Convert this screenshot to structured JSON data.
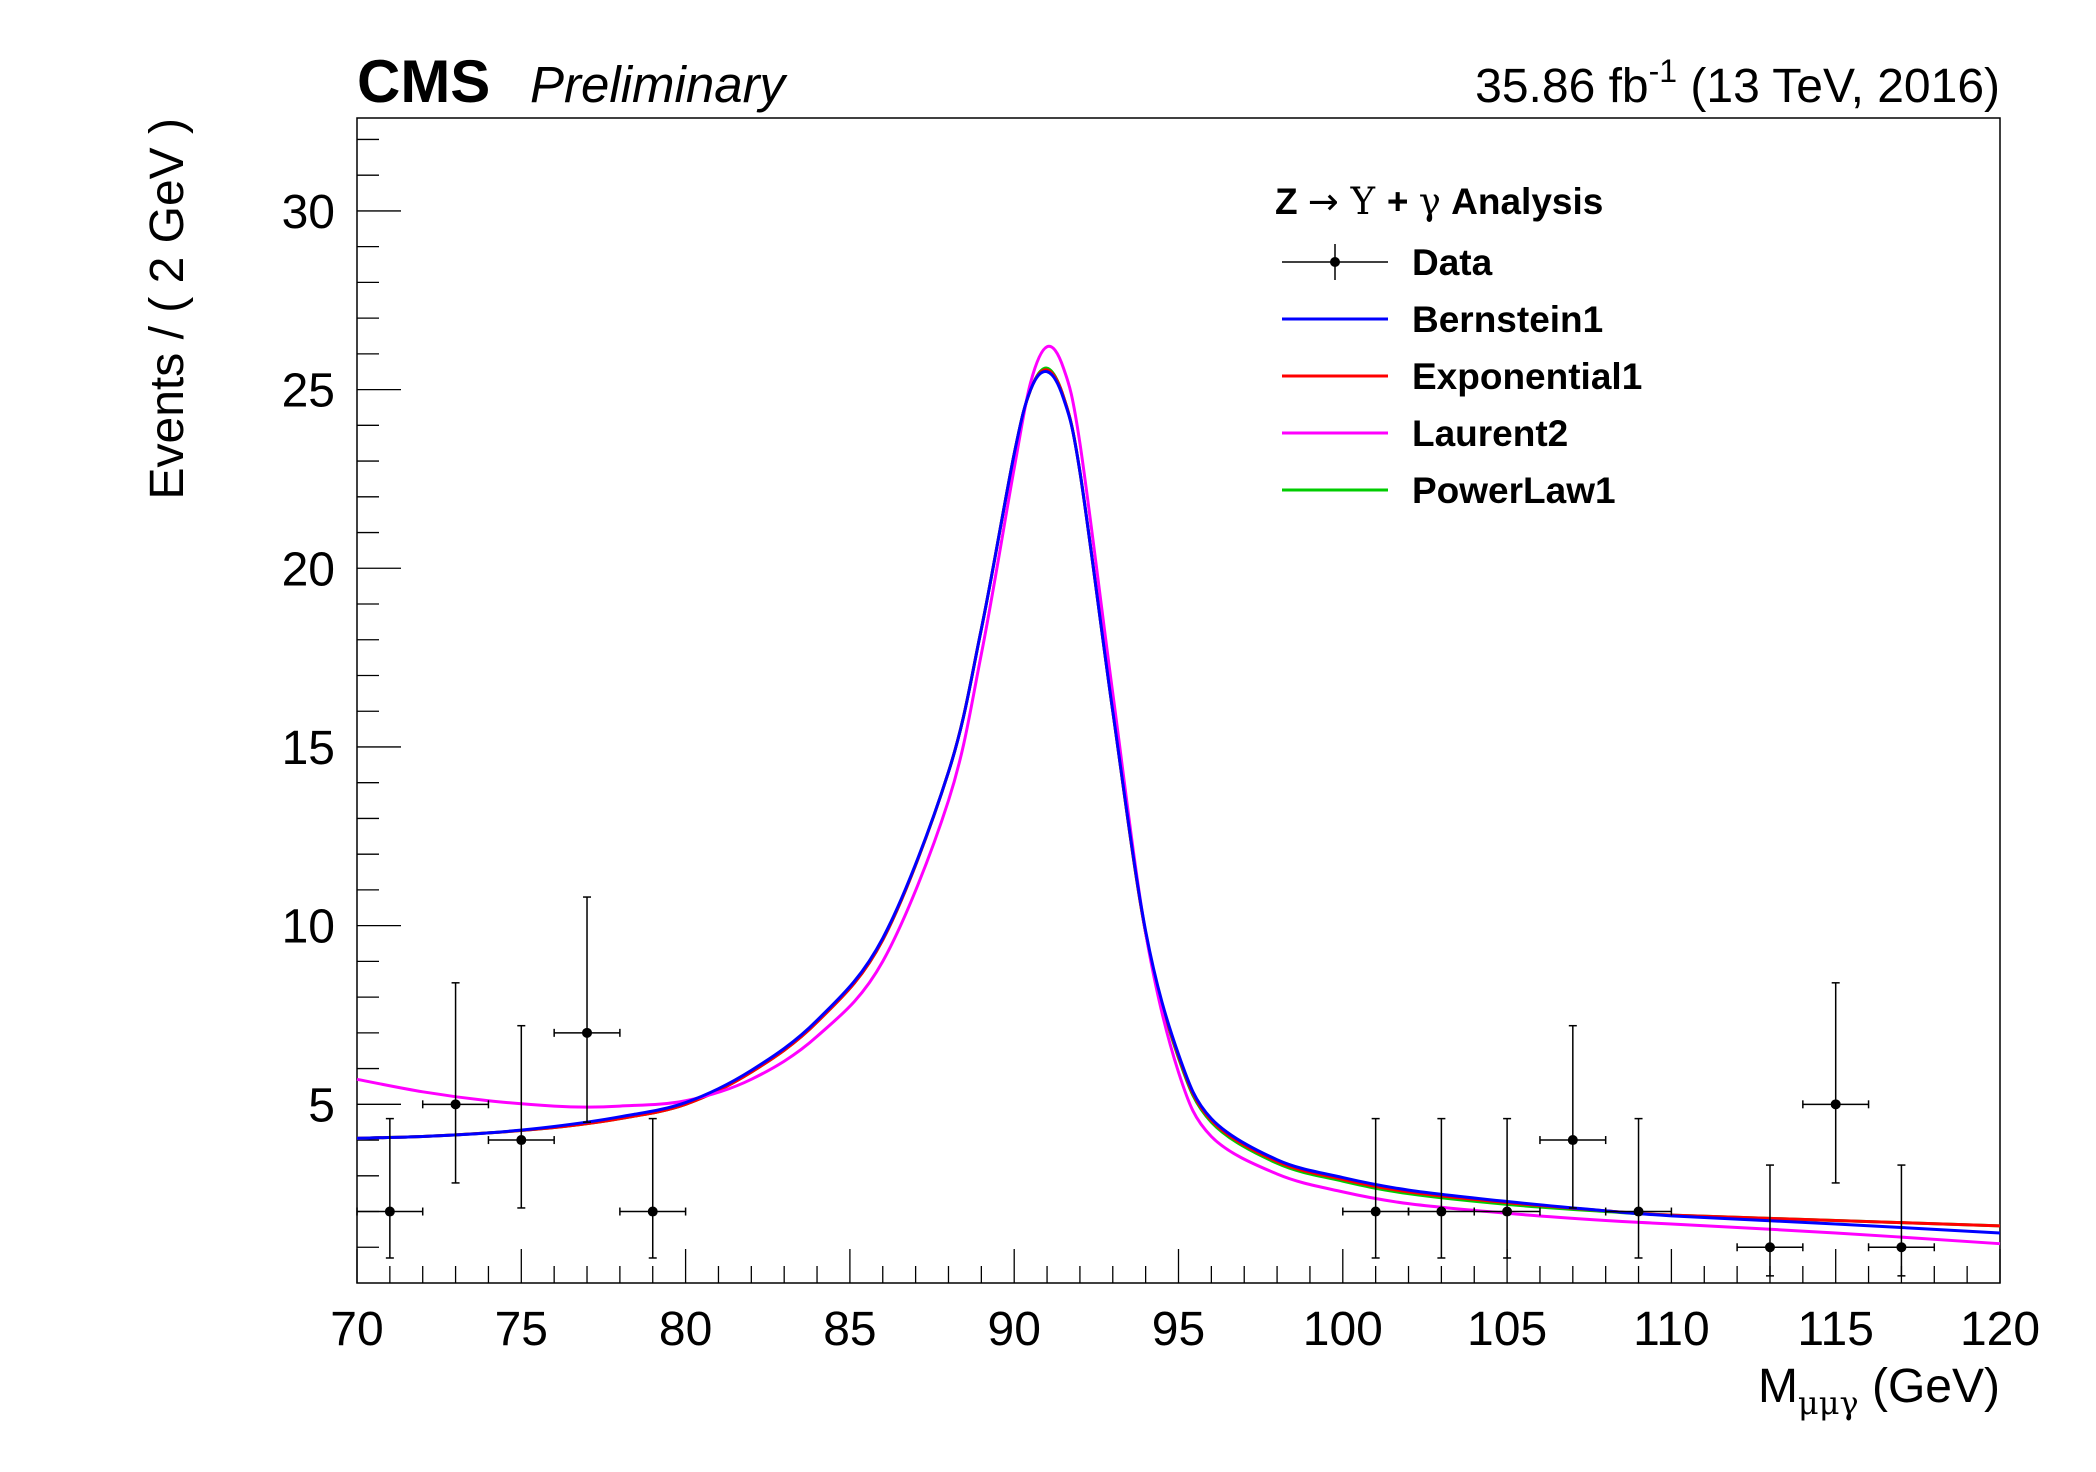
{
  "header": {
    "experiment": "CMS",
    "status": "Preliminary",
    "lumi_value": "35.86 fb",
    "lumi_exp": "-1",
    "lumi_tail": " (13 TeV, 2016)"
  },
  "legend": {
    "title_parts": {
      "a": "Z ",
      "arrow": "→",
      "b": " Υ ",
      "plus": "+ ",
      "gamma": "γ",
      "c": " Analysis"
    },
    "entries": [
      {
        "key": "data",
        "label": "Data",
        "color": "#000000",
        "kind": "marker"
      },
      {
        "key": "bernstein1",
        "label": "Bernstein1",
        "color": "#0000ff",
        "kind": "line"
      },
      {
        "key": "exponential1",
        "label": "Exponential1",
        "color": "#ff0000",
        "kind": "line"
      },
      {
        "key": "laurent2",
        "label": "Laurent2",
        "color": "#ff00ff",
        "kind": "line"
      },
      {
        "key": "powerlaw1",
        "label": "PowerLaw1",
        "color": "#00cc00",
        "kind": "line"
      }
    ]
  },
  "chart_data": {
    "type": "scatter",
    "xlabel_main": "M",
    "xlabel_sub": "μμγ",
    "xlabel_unit": " (GeV)",
    "ylabel": "Events / ( 2 GeV )",
    "xlim": [
      70,
      120
    ],
    "ylim": [
      0,
      32.6
    ],
    "x_ticks": [
      70,
      75,
      80,
      85,
      90,
      95,
      100,
      105,
      110,
      115,
      120
    ],
    "y_ticks": [
      5,
      10,
      15,
      20,
      25,
      30
    ],
    "grid": false,
    "legend_position": "top-right",
    "data_points": [
      {
        "x": 71,
        "y": 2,
        "xerr": 1,
        "ylo": 0.7,
        "yhi": 4.6
      },
      {
        "x": 73,
        "y": 5,
        "xerr": 1,
        "ylo": 2.8,
        "yhi": 8.4
      },
      {
        "x": 75,
        "y": 4,
        "xerr": 1,
        "ylo": 2.1,
        "yhi": 7.2
      },
      {
        "x": 77,
        "y": 7,
        "xerr": 1,
        "ylo": 4.5,
        "yhi": 10.8
      },
      {
        "x": 79,
        "y": 2,
        "xerr": 1,
        "ylo": 0.7,
        "yhi": 4.6
      },
      {
        "x": 101,
        "y": 2,
        "xerr": 1,
        "ylo": 0.7,
        "yhi": 4.6
      },
      {
        "x": 103,
        "y": 2,
        "xerr": 1,
        "ylo": 0.7,
        "yhi": 4.6
      },
      {
        "x": 105,
        "y": 2,
        "xerr": 1,
        "ylo": 0.7,
        "yhi": 4.6
      },
      {
        "x": 107,
        "y": 4,
        "xerr": 1,
        "ylo": 2.1,
        "yhi": 7.2
      },
      {
        "x": 109,
        "y": 2,
        "xerr": 1,
        "ylo": 0.7,
        "yhi": 4.6
      },
      {
        "x": 113,
        "y": 1,
        "xerr": 1,
        "ylo": 0.2,
        "yhi": 3.3
      },
      {
        "x": 115,
        "y": 5,
        "xerr": 1,
        "ylo": 2.8,
        "yhi": 8.4
      },
      {
        "x": 117,
        "y": 1,
        "xerr": 1,
        "ylo": 0.2,
        "yhi": 3.3
      }
    ],
    "series": [
      {
        "key": "powerlaw1",
        "color": "#00cc00",
        "x": [
          70,
          72,
          74,
          76,
          78,
          80,
          82,
          84,
          86,
          88,
          89,
          90,
          90.5,
          91,
          91.5,
          92,
          93,
          94,
          95,
          96,
          98,
          100,
          102,
          105,
          108,
          110,
          115,
          120
        ],
        "y": [
          4.05,
          4.1,
          4.2,
          4.35,
          4.6,
          5.0,
          5.9,
          7.3,
          9.6,
          14.3,
          18.3,
          23.2,
          25.0,
          25.6,
          24.8,
          22.7,
          16.0,
          9.8,
          6.3,
          4.5,
          3.35,
          2.85,
          2.5,
          2.2,
          2.0,
          1.9,
          1.75,
          1.6
        ]
      },
      {
        "key": "exponential1",
        "color": "#ff0000",
        "x": [
          70,
          72,
          74,
          76,
          78,
          80,
          82,
          84,
          86,
          88,
          89,
          90,
          90.5,
          91,
          91.5,
          92,
          93,
          94,
          95,
          96,
          98,
          100,
          102,
          105,
          108,
          110,
          115,
          120
        ],
        "y": [
          4.05,
          4.1,
          4.2,
          4.35,
          4.6,
          5.0,
          5.9,
          7.3,
          9.6,
          14.3,
          18.3,
          23.2,
          25.0,
          25.55,
          24.8,
          22.7,
          16.0,
          9.8,
          6.35,
          4.55,
          3.4,
          2.9,
          2.55,
          2.25,
          2.02,
          1.9,
          1.75,
          1.6
        ]
      },
      {
        "key": "bernstein1",
        "color": "#0000ff",
        "x": [
          70,
          72,
          74,
          76,
          78,
          80,
          82,
          84,
          86,
          88,
          89,
          90,
          90.5,
          91,
          91.5,
          92,
          93,
          94,
          95,
          96,
          98,
          100,
          102,
          105,
          108,
          110,
          115,
          120
        ],
        "y": [
          4.05,
          4.1,
          4.2,
          4.38,
          4.65,
          5.05,
          5.95,
          7.35,
          9.65,
          14.3,
          18.3,
          23.2,
          25.0,
          25.5,
          24.75,
          22.7,
          16.0,
          9.85,
          6.4,
          4.6,
          3.45,
          2.95,
          2.6,
          2.28,
          2.02,
          1.88,
          1.65,
          1.4
        ]
      },
      {
        "key": "laurent2",
        "color": "#ff00ff",
        "x": [
          70,
          72,
          74,
          76,
          77,
          78,
          80,
          82,
          84,
          86,
          88,
          89,
          90,
          90.5,
          91,
          91.5,
          92,
          93,
          94,
          95,
          96,
          98,
          100,
          102,
          105,
          108,
          110,
          115,
          120
        ],
        "y": [
          5.7,
          5.35,
          5.1,
          4.95,
          4.92,
          4.95,
          5.1,
          5.7,
          6.9,
          9.0,
          13.5,
          17.6,
          22.8,
          25.2,
          26.2,
          25.6,
          23.5,
          16.5,
          9.8,
          5.9,
          4.1,
          3.05,
          2.55,
          2.22,
          1.95,
          1.75,
          1.65,
          1.4,
          1.1
        ]
      }
    ]
  }
}
